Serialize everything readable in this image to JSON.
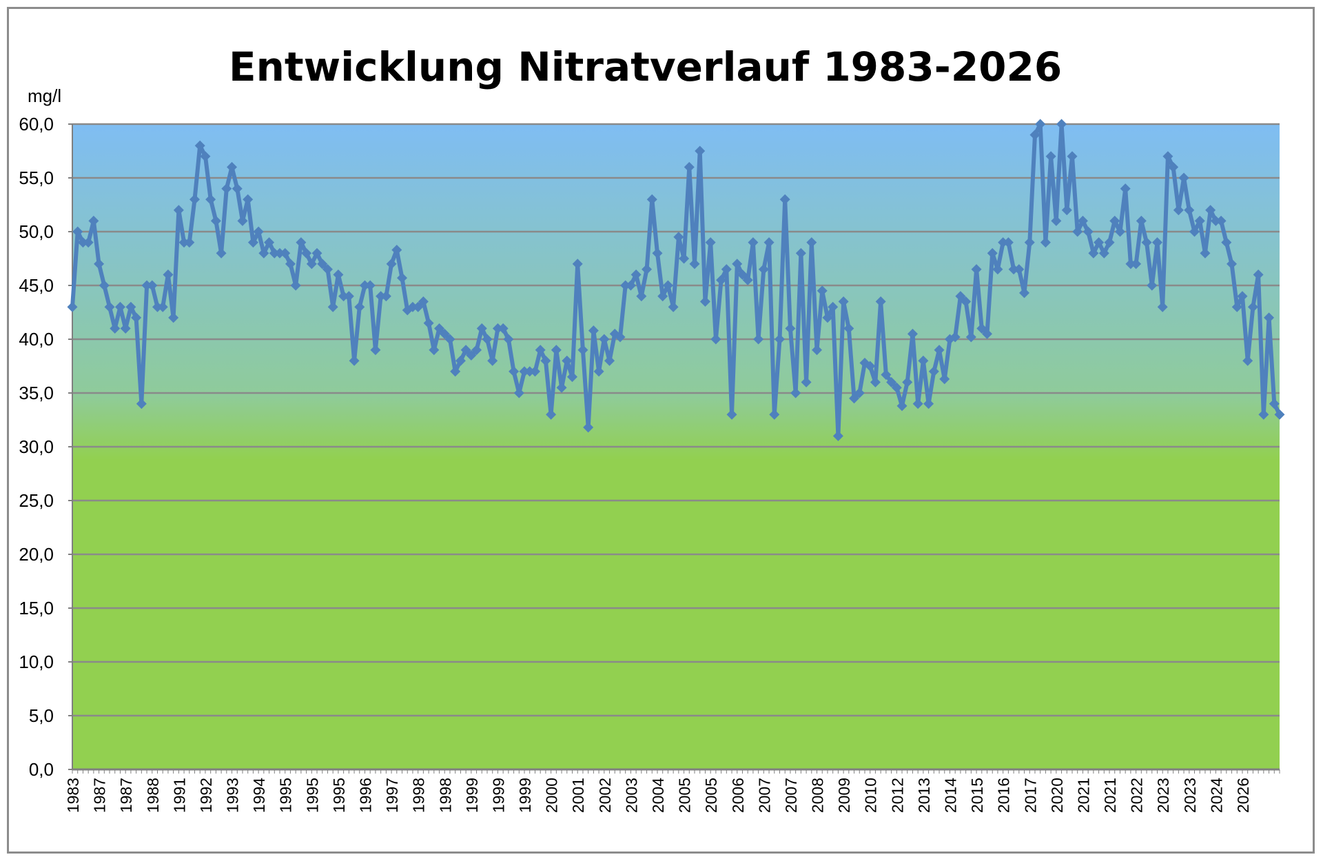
{
  "chart_data": {
    "type": "line",
    "title": "Entwicklung Nitratverlauf 1983-2026",
    "unit_label": "mg/l",
    "xlabel": "",
    "ylabel": "",
    "ylim": [
      0,
      60
    ],
    "y_ticks": [
      "0,0",
      "5,0",
      "10,0",
      "15,0",
      "20,0",
      "25,0",
      "30,0",
      "35,0",
      "40,0",
      "45,0",
      "50,0",
      "55,0",
      "60,0"
    ],
    "grid": true,
    "legend": "none",
    "x_tick_labels": [
      "1983",
      "1987",
      "1987",
      "1988",
      "1991",
      "1992",
      "1993",
      "1994",
      "1995",
      "1995",
      "1995",
      "1996",
      "1997",
      "1998",
      "1998",
      "1999",
      "1999",
      "1999",
      "2000",
      "2001",
      "2002",
      "2003",
      "2004",
      "2005",
      "2005",
      "2006",
      "2007",
      "2007",
      "2008",
      "2009",
      "2010",
      "2012",
      "2013",
      "2014",
      "2015",
      "2016",
      "2017",
      "2020",
      "2021",
      "2021",
      "2022",
      "2023",
      "2023",
      "2024",
      "2026"
    ],
    "series": [
      {
        "name": "",
        "color": "#4f81bd",
        "values": [
          43.0,
          50.0,
          49.0,
          49.0,
          51.0,
          47.0,
          45.0,
          43.0,
          41.0,
          43.0,
          41.0,
          43.0,
          42.0,
          34.0,
          45.0,
          45.0,
          43.0,
          43.0,
          46.0,
          42.0,
          52.0,
          49.0,
          49.0,
          53.0,
          58.0,
          57.0,
          53.0,
          51.0,
          48.0,
          54.0,
          56.0,
          54.0,
          51.0,
          53.0,
          49.0,
          50.0,
          48.0,
          49.0,
          48.0,
          48.0,
          48.0,
          47.0,
          45.0,
          49.0,
          48.0,
          47.0,
          48.0,
          47.0,
          46.5,
          43.0,
          46.0,
          44.0,
          44.0,
          38.0,
          43.0,
          45.0,
          45.0,
          39.0,
          44.0,
          44.0,
          47.0,
          48.3,
          45.7,
          42.7,
          43.0,
          43.0,
          43.5,
          41.5,
          39.0,
          41.0,
          40.5,
          40.0,
          37.0,
          38.0,
          39.0,
          38.5,
          39.0,
          41.0,
          40.0,
          38.0,
          41.0,
          41.0,
          40.0,
          37.0,
          35.0,
          37.0,
          37.0,
          37.0,
          39.0,
          38.0,
          33.0,
          39.0,
          35.5,
          38.0,
          36.5,
          47.0,
          39.0,
          31.8,
          40.8,
          37.0,
          40.0,
          38.0,
          40.5,
          40.2,
          45.0,
          45.0,
          46.0,
          44.0,
          46.5,
          53.0,
          48.0,
          44.0,
          45.0,
          43.0,
          49.5,
          47.5,
          56.0,
          47.0,
          57.5,
          43.5,
          49.0,
          40.0,
          45.5,
          46.5,
          33.0,
          47.0,
          46.0,
          45.5,
          49.0,
          40.0,
          46.5,
          49.0,
          33.0,
          40.0,
          53.0,
          41.0,
          35.0,
          48.0,
          36.0,
          49.0,
          39.0,
          44.5,
          42.0,
          43.0,
          31.0,
          43.5,
          41.0,
          34.5,
          35.0,
          37.8,
          37.5,
          36.0,
          43.5,
          36.7,
          36.0,
          35.5,
          33.8,
          36.0,
          40.5,
          34.0,
          38.0,
          34.0,
          37.0,
          39.0,
          36.3,
          40.0,
          40.2,
          44.0,
          43.5,
          40.2,
          46.5,
          41.0,
          40.5,
          48.0,
          46.5,
          49.0,
          49.0,
          46.5,
          46.5,
          44.3,
          49.0,
          59.0,
          60.0,
          49.0,
          57.0,
          51.0,
          60.0,
          52.0,
          57.0,
          50.0,
          51.0,
          50.0,
          48.0,
          49.0,
          48.0,
          49.0,
          51.0,
          50.0,
          54.0,
          47.0,
          47.0,
          51.0,
          49.0,
          45.0,
          49.0,
          43.0,
          57.0,
          56.0,
          52.0,
          55.0,
          52.0,
          50.0,
          51.0,
          48.0,
          52.0,
          51.0,
          51.0,
          49.0,
          47.0,
          43.0,
          44.0,
          38.0,
          43.0,
          46.0,
          33.0,
          42.0,
          34.0,
          33.0
        ]
      }
    ]
  }
}
